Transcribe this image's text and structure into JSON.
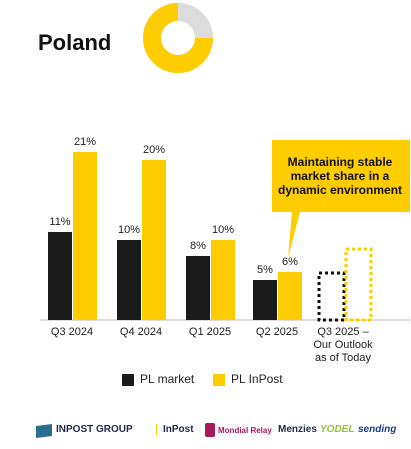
{
  "chart_data": {
    "type": "bar",
    "title": "Poland",
    "categories": [
      "Q3 2024",
      "Q4 2024",
      "Q1 2025",
      "Q2 2025",
      "Q3 2025 – Our Outlook as of Today"
    ],
    "series": [
      {
        "name": "PL market",
        "color": "#1a1a1a",
        "values": [
          11,
          10,
          8,
          5,
          null
        ],
        "value_labels": [
          "11%",
          "10%",
          "8%",
          "5%",
          null
        ]
      },
      {
        "name": "PL InPost",
        "color": "#ffcc00",
        "values": [
          21,
          20,
          10,
          6,
          null
        ],
        "value_labels": [
          "21%",
          "20%",
          "10%",
          "6%",
          null
        ]
      }
    ],
    "annotation": "Maintaining stable market share in a dynamic environment"
  },
  "footer": {
    "logos": [
      "INPOST GROUP",
      "InPost",
      "Mondial Relay",
      "Menzies",
      "YODEL",
      "sending"
    ]
  }
}
